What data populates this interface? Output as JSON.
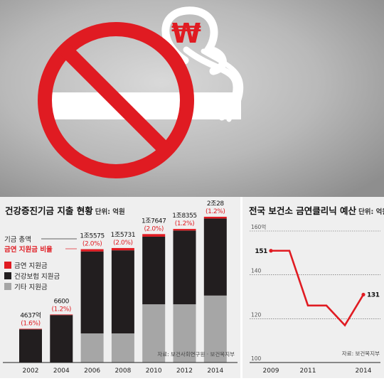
{
  "banner": {
    "currency_symbol": "₩"
  },
  "chart_data": [
    {
      "type": "bar",
      "title": "건강증진기금 지출 현황",
      "unit": "단위: 억원",
      "categories": [
        "2002",
        "2004",
        "2006",
        "2008",
        "2010",
        "2012",
        "2014"
      ],
      "total_labels": [
        "4637억",
        "6600",
        "1조5575",
        "1조5731",
        "1조7647",
        "1조8355",
        "2조28"
      ],
      "ratio_labels": [
        "(1.6%)",
        "(1.2%)",
        "(2.0%)",
        "(2.0%)",
        "(2.0%)",
        "(1.2%)",
        "(1.2%)"
      ],
      "series": [
        {
          "name": "금연 지원금",
          "color": "#e01b22",
          "values": [
            74,
            79,
            311,
            315,
            353,
            220,
            240
          ]
        },
        {
          "name": "건강보험 지원금",
          "color": "#221e1f",
          "values": [
            4563,
            6521,
            11264,
            11416,
            9294,
            10135,
            10588
          ]
        },
        {
          "name": "기타 지원금",
          "color": "#a6a6a6",
          "values": [
            0,
            0,
            4000,
            4000,
            8000,
            8000,
            9200
          ]
        }
      ],
      "annotations": {
        "total": "기금 총액",
        "ratio": "금연 지원금 비율"
      },
      "source": "자료: 보건사회연구원 · 보건복지부",
      "ylim": [
        0,
        21000
      ]
    },
    {
      "type": "line",
      "title": "전국 보건소 금연클리닉 예산",
      "unit": "단위: 억원",
      "x": [
        "2009",
        "2010",
        "2011",
        "2012",
        "2013",
        "2014"
      ],
      "x_ticks": [
        "2009",
        "2011",
        "2014"
      ],
      "values": [
        151,
        151,
        126,
        126,
        117,
        131
      ],
      "point_labels": {
        "first": "151",
        "last": "131"
      },
      "y_ticks": [
        "160억",
        "140",
        "120",
        "100"
      ],
      "ylim": [
        100,
        160
      ],
      "color": "#e01b22",
      "source": "자료: 보건복지부"
    }
  ]
}
